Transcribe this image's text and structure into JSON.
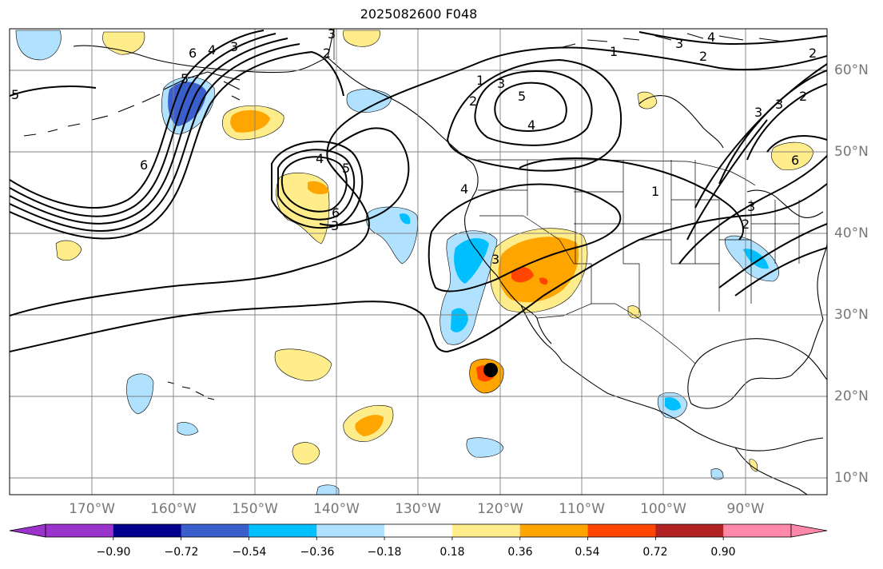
{
  "title": "2025082600 F048",
  "lon_labels": [
    "170°W",
    "160°W",
    "150°W",
    "140°W",
    "130°W",
    "120°W",
    "110°W",
    "100°W",
    "90°W"
  ],
  "lat_labels": [
    "60°N",
    "50°N",
    "40°N",
    "30°N",
    "20°N",
    "10°N"
  ],
  "colorbar": {
    "colors": [
      "#9933cc",
      "#00008b",
      "#3a5fcd",
      "#00bfff",
      "#b0e2ff",
      "#ffffff",
      "#ffec8b",
      "#ffa500",
      "#ff4500",
      "#b22222",
      "#ff88aa"
    ],
    "tick_labels": [
      "−0.90",
      "−0.72",
      "−0.54",
      "−0.36",
      "−0.18",
      "0.18",
      "0.36",
      "0.54",
      "0.72",
      "0.90"
    ]
  },
  "contour_labels": [
    "6",
    "4",
    "3",
    "2",
    "6",
    "5",
    "4",
    "5",
    "6",
    "3",
    "4",
    "1",
    "2",
    "3",
    "5",
    "4",
    "1",
    "2",
    "3",
    "6",
    "1",
    "3",
    "3",
    "2",
    "4",
    "3",
    "5",
    "3",
    "2",
    "2",
    "3"
  ],
  "colors": {
    "land_line": "#000000",
    "grid": "#808080",
    "contour": "#000000",
    "marker": "#000000"
  }
}
